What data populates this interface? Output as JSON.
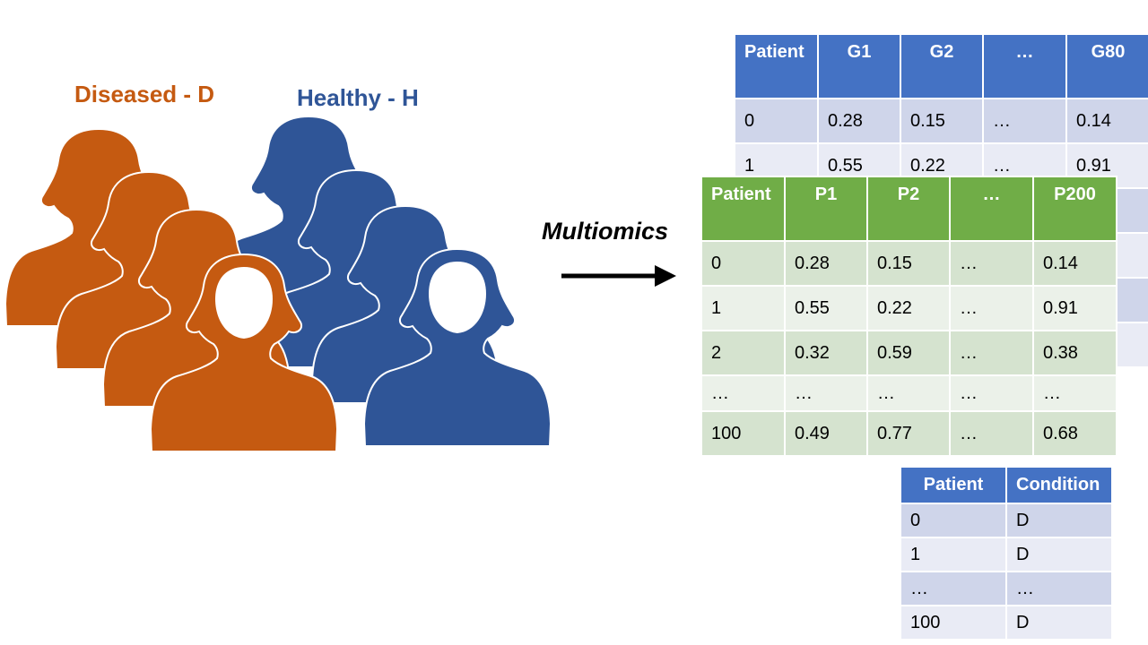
{
  "labels": {
    "diseased": "Diseased - D",
    "healthy": "Healthy - H",
    "multiomics": "Multiomics"
  },
  "colors": {
    "diseased": "#c55a11",
    "healthy": "#2f5597",
    "gene_header": "#4472c4",
    "protein_header": "#70ad47"
  },
  "icons": [
    "woman-silhouette-icon",
    "right-arrow-icon"
  ],
  "gene_table": {
    "headers": [
      "Patient",
      "G1",
      "G2",
      "…",
      "G80"
    ],
    "rows": [
      [
        "0",
        "0.28",
        "0.15",
        "…",
        "0.14"
      ],
      [
        "1",
        "0.55",
        "0.22",
        "…",
        "0.91"
      ]
    ]
  },
  "protein_table": {
    "headers": [
      "Patient",
      "P1",
      "P2",
      "…",
      "P200"
    ],
    "rows": [
      [
        "0",
        "0.28",
        "0.15",
        "…",
        "0.14"
      ],
      [
        "1",
        "0.55",
        "0.22",
        "…",
        "0.91"
      ],
      [
        "2",
        "0.32",
        "0.59",
        "…",
        "0.38"
      ],
      [
        "…",
        "…",
        "…",
        "…",
        "…"
      ],
      [
        "100",
        "0.49",
        "0.77",
        "…",
        "0.68"
      ]
    ]
  },
  "condition_table": {
    "headers": [
      "Patient",
      "Condition"
    ],
    "rows": [
      [
        "0",
        "D"
      ],
      [
        "1",
        "D"
      ],
      [
        "…",
        "…"
      ],
      [
        "100",
        "D"
      ]
    ]
  }
}
